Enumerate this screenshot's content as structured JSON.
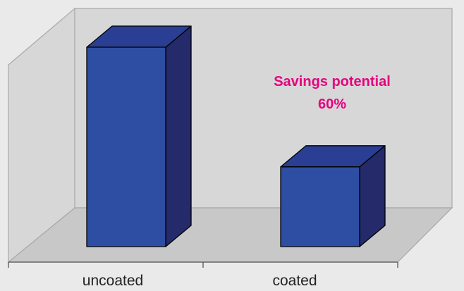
{
  "chart_data": {
    "type": "bar",
    "categories": [
      "uncoated",
      "coated"
    ],
    "values": [
      100,
      40
    ],
    "ylim": [
      0,
      100
    ],
    "grid": false,
    "title": "",
    "xlabel": "",
    "ylabel": "",
    "annotation": {
      "lines": [
        "Savings potential",
        "60%"
      ],
      "color": "#e6007e"
    },
    "colors": {
      "bar_front": "#2d4ea2",
      "bar_top": "#2a3f93",
      "bar_side": "#252a6a",
      "wall": "#d7d7d7",
      "floor": "#c8c8c8",
      "background": "#eaeaea"
    }
  }
}
